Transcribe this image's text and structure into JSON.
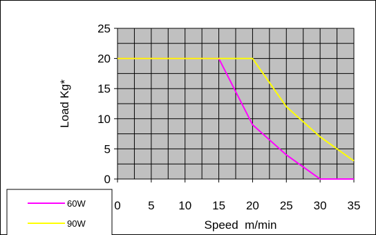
{
  "chart_data": {
    "type": "line",
    "title": "",
    "xlabel": "Speed  m/min",
    "ylabel": "Load Kg*",
    "xlim": [
      0,
      35
    ],
    "ylim": [
      0,
      25
    ],
    "x_ticks": [
      0,
      5,
      10,
      15,
      20,
      25,
      30,
      35
    ],
    "y_ticks": [
      0,
      5,
      10,
      15,
      20,
      25
    ],
    "grid": true,
    "plot_background": "#c0c0c0",
    "legend_position": "bottom-left",
    "series": [
      {
        "name": "60W",
        "color": "#ff00ff",
        "points": [
          [
            0,
            20
          ],
          [
            15,
            20
          ],
          [
            20,
            9
          ],
          [
            25,
            4
          ],
          [
            30,
            0
          ],
          [
            35,
            0
          ]
        ]
      },
      {
        "name": "90W",
        "color": "#ffff00",
        "points": [
          [
            0,
            20
          ],
          [
            20,
            20
          ],
          [
            25,
            12
          ],
          [
            30,
            7
          ],
          [
            35,
            3
          ]
        ]
      }
    ]
  }
}
